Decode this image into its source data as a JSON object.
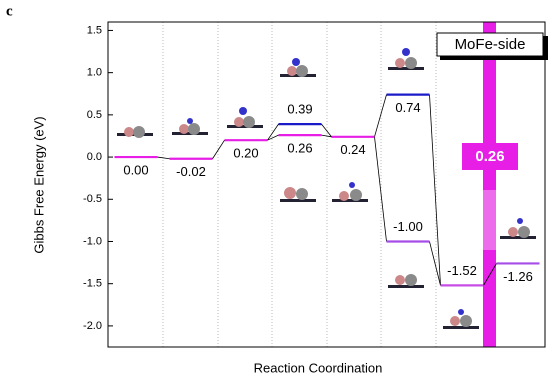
{
  "chart_data": {
    "type": "energy-levels",
    "panel_label": "c",
    "ylabel": "Gibbs Free Energy (eV)",
    "xlabel": "Reaction Coordination",
    "categories": [
      null,
      null,
      null,
      null,
      null,
      null,
      null,
      null
    ],
    "series": [
      {
        "color": "#e61ee6",
        "colors": [
          "#e61ee6",
          "#e61ee6",
          "#e61ee6",
          "#e61ee6",
          "#e61ee6",
          "#a64de6",
          "#c64de6",
          "#a64de6"
        ],
        "values": [
          0.0,
          -0.02,
          0.2,
          0.26,
          0.24,
          -1.0,
          -1.52,
          -1.26
        ],
        "value_labels": [
          "0.00",
          "-0.02",
          "0.20",
          "0.26",
          "0.24",
          "-1.00",
          "-1.52",
          "-1.26"
        ]
      },
      {
        "color": "#1a1ac8",
        "values": [
          null,
          null,
          null,
          0.39,
          null,
          0.74,
          null,
          null
        ],
        "value_labels": [
          null,
          null,
          null,
          "0.39",
          null,
          "0.74",
          null,
          null
        ]
      }
    ],
    "ylim": [
      -2.25,
      1.6
    ],
    "yticks": [
      1.5,
      {
        "value": 1.0,
        "label": "1.0"
      },
      0.5,
      {
        "value": 0.0,
        "label": "0.0"
      },
      -0.5,
      {
        "value": -1.0,
        "label": "-1.0"
      },
      -1.5,
      {
        "value": -2.0,
        "label": "-2.0"
      }
    ],
    "annotations": [
      "MoFe-side",
      "0.26"
    ]
  }
}
